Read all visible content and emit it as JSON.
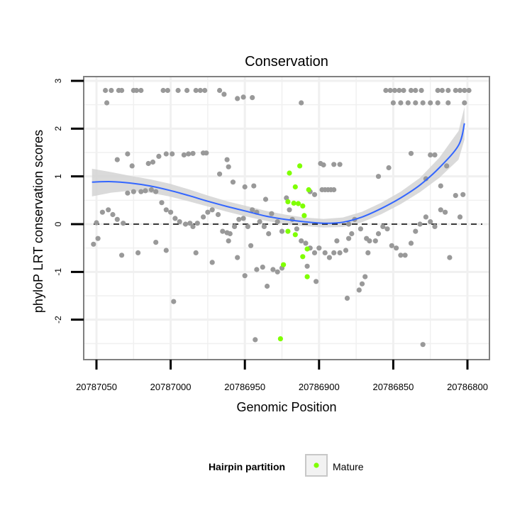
{
  "chart_data": {
    "type": "scatter",
    "title": "Conservation",
    "xlabel": "Genomic Position",
    "ylabel": "phyloP LRT conservation scores",
    "x_reversed": true,
    "xlim": [
      20787058,
      20786785
    ],
    "ylim": [
      -2.8,
      3.05
    ],
    "x_ticks": [
      {
        "value": 20787050,
        "label": "20787050"
      },
      {
        "value": 20787000,
        "label": "20787000"
      },
      {
        "value": 20786950,
        "label": "20786950"
      },
      {
        "value": 20786900,
        "label": "20786900"
      },
      {
        "value": 20786850,
        "label": "20786850"
      },
      {
        "value": 20786800,
        "label": "20786800"
      }
    ],
    "y_ticks": [
      {
        "value": -2,
        "label": "-2"
      },
      {
        "value": -1,
        "label": "-1"
      },
      {
        "value": 0,
        "label": "0"
      },
      {
        "value": 1,
        "label": "1"
      },
      {
        "value": 2,
        "label": "2"
      },
      {
        "value": 3,
        "label": "3"
      }
    ],
    "grid": true,
    "reference_line": {
      "y": 0,
      "style": "dashed",
      "color": "#000000"
    },
    "colors": {
      "other": "#999999",
      "mature": "#7FFF00",
      "smooth": "#3366FF",
      "band": "#d3d3d3",
      "panel_border": "#808080",
      "grid": "#f0f0f0"
    },
    "series": [
      {
        "name": "",
        "color": "#999999",
        "points": [
          [
            20787044,
            2.8
          ],
          [
            20787040,
            2.8
          ],
          [
            20787035,
            2.8
          ],
          [
            20787033,
            2.8
          ],
          [
            20787025,
            2.8
          ],
          [
            20787023,
            2.8
          ],
          [
            20787020,
            2.8
          ],
          [
            20787005,
            2.8
          ],
          [
            20787002,
            2.8
          ],
          [
            20786995,
            2.8
          ],
          [
            20786989,
            2.8
          ],
          [
            20786983,
            2.8
          ],
          [
            20786980,
            2.8
          ],
          [
            20786977,
            2.8
          ],
          [
            20786967,
            2.8
          ],
          [
            20786964,
            2.72
          ],
          [
            20786955,
            2.63
          ],
          [
            20786951,
            2.66
          ],
          [
            20786945,
            2.65
          ],
          [
            20787043,
            2.54
          ],
          [
            20786855,
            2.8
          ],
          [
            20786852,
            2.8
          ],
          [
            20786849,
            2.8
          ],
          [
            20786846,
            2.8
          ],
          [
            20786843,
            2.8
          ],
          [
            20786838,
            2.8
          ],
          [
            20786835,
            2.8
          ],
          [
            20786831,
            2.8
          ],
          [
            20786820,
            2.8
          ],
          [
            20786817,
            2.8
          ],
          [
            20786813,
            2.8
          ],
          [
            20786808,
            2.8
          ],
          [
            20786805,
            2.8
          ],
          [
            20786802,
            2.8
          ],
          [
            20786799,
            2.8
          ],
          [
            20786850,
            2.54
          ],
          [
            20786845,
            2.54
          ],
          [
            20786840,
            2.54
          ],
          [
            20786835,
            2.54
          ],
          [
            20786830,
            2.54
          ],
          [
            20786825,
            2.54
          ],
          [
            20786820,
            2.54
          ],
          [
            20786813,
            2.54
          ],
          [
            20786802,
            2.54
          ],
          [
            20786912,
            2.54
          ],
          [
            20787036,
            1.35
          ],
          [
            20787029,
            1.47
          ],
          [
            20787026,
            1.22
          ],
          [
            20787015,
            1.27
          ],
          [
            20787012,
            1.3
          ],
          [
            20787008,
            1.42
          ],
          [
            20787003,
            1.47
          ],
          [
            20786999,
            1.47
          ],
          [
            20786991,
            1.45
          ],
          [
            20786988,
            1.47
          ],
          [
            20786985,
            1.48
          ],
          [
            20786978,
            1.49
          ],
          [
            20786976,
            1.49
          ],
          [
            20786962,
            1.35
          ],
          [
            20786961,
            1.2
          ],
          [
            20786967,
            1.05
          ],
          [
            20786958,
            0.88
          ],
          [
            20786950,
            0.78
          ],
          [
            20786944,
            0.8
          ],
          [
            20786936,
            0.52
          ],
          [
            20786898,
            0.72
          ],
          [
            20786896,
            0.72
          ],
          [
            20786894,
            0.72
          ],
          [
            20786892,
            0.72
          ],
          [
            20786890,
            0.72
          ],
          [
            20786903,
            0.62
          ],
          [
            20786899,
            1.27
          ],
          [
            20786897,
            1.24
          ],
          [
            20786890,
            1.25
          ],
          [
            20786886,
            1.25
          ],
          [
            20786906,
            0.68
          ],
          [
            20786860,
            1.0
          ],
          [
            20786853,
            1.18
          ],
          [
            20786838,
            1.48
          ],
          [
            20786825,
            1.45
          ],
          [
            20786822,
            1.45
          ],
          [
            20786814,
            1.22
          ],
          [
            20786818,
            0.8
          ],
          [
            20786828,
            0.95
          ],
          [
            20787050,
            0.03
          ],
          [
            20787046,
            0.25
          ],
          [
            20787042,
            0.3
          ],
          [
            20787039,
            0.2
          ],
          [
            20787036,
            0.1
          ],
          [
            20787032,
            0.02
          ],
          [
            20787029,
            0.65
          ],
          [
            20787025,
            0.68
          ],
          [
            20787020,
            0.68
          ],
          [
            20787017,
            0.7
          ],
          [
            20787013,
            0.72
          ],
          [
            20787010,
            0.68
          ],
          [
            20787006,
            0.45
          ],
          [
            20787003,
            0.3
          ],
          [
            20787000,
            0.25
          ],
          [
            20786997,
            0.12
          ],
          [
            20786994,
            0.05
          ],
          [
            20786990,
            0.0
          ],
          [
            20786987,
            0.02
          ],
          [
            20786985,
            -0.05
          ],
          [
            20786982,
            0.02
          ],
          [
            20786978,
            0.15
          ],
          [
            20786975,
            0.25
          ],
          [
            20786972,
            0.3
          ],
          [
            20786968,
            0.2
          ],
          [
            20786965,
            -0.15
          ],
          [
            20786962,
            -0.18
          ],
          [
            20786960,
            -0.2
          ],
          [
            20786957,
            -0.05
          ],
          [
            20786954,
            0.1
          ],
          [
            20786951,
            0.12
          ],
          [
            20786948,
            -0.05
          ],
          [
            20786945,
            0.3
          ],
          [
            20786942,
            0.25
          ],
          [
            20786940,
            0.05
          ],
          [
            20786937,
            -0.05
          ],
          [
            20786934,
            -0.2
          ],
          [
            20786932,
            0.22
          ],
          [
            20786928,
            0.05
          ],
          [
            20786925,
            -0.15
          ],
          [
            20786922,
            0.55
          ],
          [
            20786920,
            0.3
          ],
          [
            20786918,
            0.1
          ],
          [
            20786915,
            -0.1
          ],
          [
            20786912,
            -0.35
          ],
          [
            20786909,
            -0.4
          ],
          [
            20786906,
            -0.5
          ],
          [
            20786903,
            -0.6
          ],
          [
            20786900,
            -0.5
          ],
          [
            20786896,
            -0.6
          ],
          [
            20786893,
            -0.7
          ],
          [
            20786890,
            -0.6
          ],
          [
            20786886,
            -0.6
          ],
          [
            20786882,
            -0.55
          ],
          [
            20786880,
            0.0
          ],
          [
            20786878,
            -0.2
          ],
          [
            20786876,
            0.1
          ],
          [
            20786872,
            -0.1
          ],
          [
            20786868,
            -0.3
          ],
          [
            20786866,
            -0.35
          ],
          [
            20786862,
            -0.35
          ],
          [
            20786860,
            -0.2
          ],
          [
            20786857,
            -0.05
          ],
          [
            20786854,
            -0.1
          ],
          [
            20786851,
            -0.45
          ],
          [
            20786848,
            -0.5
          ],
          [
            20786845,
            -0.65
          ],
          [
            20786842,
            -0.65
          ],
          [
            20786838,
            -0.4
          ],
          [
            20786835,
            -0.15
          ],
          [
            20786832,
            0.0
          ],
          [
            20786828,
            0.15
          ],
          [
            20786825,
            0.05
          ],
          [
            20786822,
            -0.05
          ],
          [
            20786818,
            0.3
          ],
          [
            20786815,
            0.25
          ],
          [
            20786812,
            -0.7
          ],
          [
            20786808,
            0.6
          ],
          [
            20786805,
            0.15
          ],
          [
            20786803,
            0.62
          ],
          [
            20787052,
            -0.42
          ],
          [
            20787049,
            -0.3
          ],
          [
            20787033,
            -0.65
          ],
          [
            20787022,
            -0.6
          ],
          [
            20787010,
            -0.38
          ],
          [
            20787003,
            -0.55
          ],
          [
            20786998,
            -1.62
          ],
          [
            20786983,
            -0.6
          ],
          [
            20786972,
            -0.8
          ],
          [
            20786961,
            -0.35
          ],
          [
            20786955,
            -0.7
          ],
          [
            20786950,
            -1.08
          ],
          [
            20786946,
            -0.45
          ],
          [
            20786942,
            -0.95
          ],
          [
            20786938,
            -0.9
          ],
          [
            20786935,
            -1.3
          ],
          [
            20786931,
            -0.95
          ],
          [
            20786928,
            -1.0
          ],
          [
            20786925,
            -0.92
          ],
          [
            20786908,
            -0.88
          ],
          [
            20786902,
            -1.2
          ],
          [
            20786881,
            -1.55
          ],
          [
            20786873,
            -1.38
          ],
          [
            20786871,
            -1.25
          ],
          [
            20786869,
            -1.1
          ],
          [
            20786880,
            -0.3
          ],
          [
            20786888,
            -0.35
          ],
          [
            20786867,
            -0.6
          ],
          [
            20786830,
            -2.52
          ],
          [
            20786943,
            -2.42
          ]
        ]
      },
      {
        "name": "Mature",
        "color": "#7FFF00",
        "points": [
          [
            20786913,
            1.22
          ],
          [
            20786920,
            1.07
          ],
          [
            20786916,
            0.78
          ],
          [
            20786907,
            0.72
          ],
          [
            20786921,
            0.47
          ],
          [
            20786917,
            0.44
          ],
          [
            20786914,
            0.43
          ],
          [
            20786911,
            0.38
          ],
          [
            20786910,
            0.18
          ],
          [
            20786921,
            -0.15
          ],
          [
            20786916,
            -0.22
          ],
          [
            20786908,
            -0.52
          ],
          [
            20786911,
            -0.68
          ],
          [
            20786924,
            -0.85
          ],
          [
            20786908,
            -1.1
          ],
          [
            20786926,
            -2.4
          ]
        ]
      }
    ],
    "smooth": {
      "method": "loess",
      "color": "#3366FF",
      "x": [
        20787053,
        20787040,
        20787027,
        20787014,
        20787001,
        20786988,
        20786975,
        20786962,
        20786949,
        20786936,
        20786923,
        20786910,
        20786897,
        20786884,
        20786871,
        20786858,
        20786845,
        20786832,
        20786819,
        20786806,
        20786802
      ],
      "y": [
        0.88,
        0.89,
        0.86,
        0.8,
        0.71,
        0.6,
        0.48,
        0.37,
        0.27,
        0.17,
        0.1,
        0.05,
        0.02,
        0.04,
        0.15,
        0.33,
        0.55,
        0.82,
        1.18,
        1.65,
        2.11
      ],
      "lower": [
        0.58,
        0.66,
        0.7,
        0.66,
        0.58,
        0.48,
        0.37,
        0.26,
        0.16,
        0.07,
        0.0,
        -0.04,
        -0.07,
        -0.06,
        0.04,
        0.21,
        0.42,
        0.67,
        0.97,
        1.35,
        1.77
      ],
      "upper": [
        1.16,
        1.09,
        1.01,
        0.94,
        0.85,
        0.73,
        0.6,
        0.48,
        0.38,
        0.28,
        0.2,
        0.14,
        0.11,
        0.14,
        0.26,
        0.45,
        0.68,
        0.97,
        1.39,
        1.95,
        2.45
      ]
    },
    "legend": {
      "title": "Hairpin partition",
      "entries": [
        "Mature"
      ],
      "placement": "bottom"
    }
  }
}
